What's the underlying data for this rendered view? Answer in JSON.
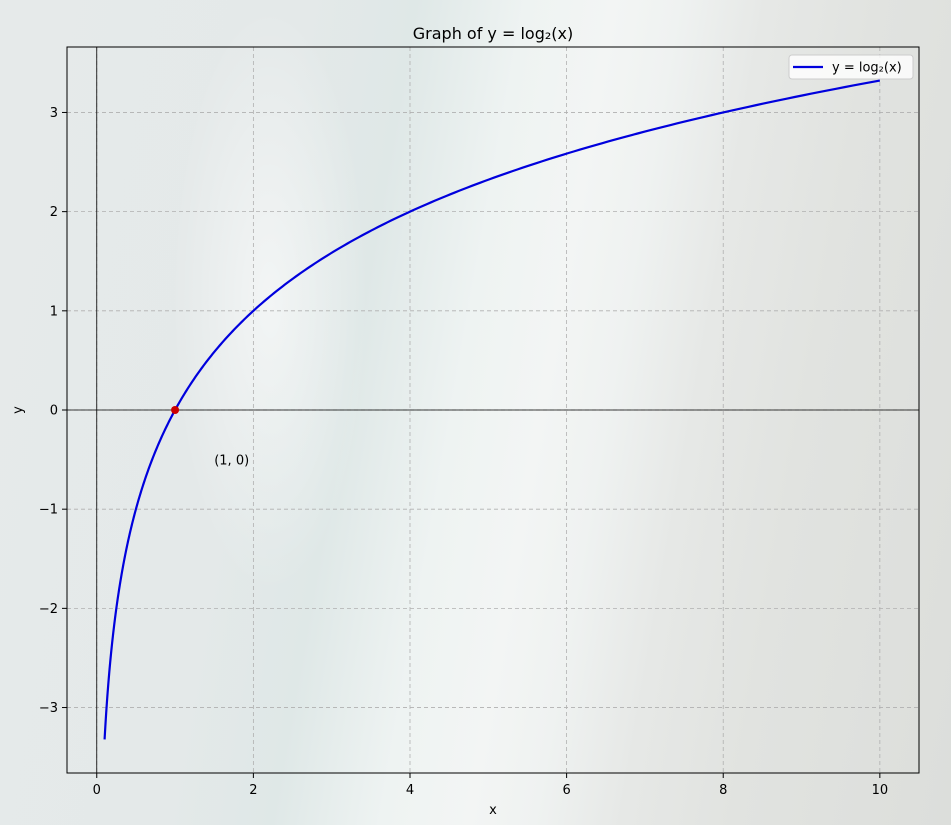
{
  "chart_data": {
    "type": "line",
    "title": "Graph of y = log₂(x)",
    "xlabel": "x",
    "ylabel": "y",
    "xlim": [
      -0.38,
      10.5
    ],
    "ylim": [
      -3.66,
      3.66
    ],
    "xticks": [
      0,
      2,
      4,
      6,
      8,
      10
    ],
    "yticks": [
      -3,
      -2,
      -1,
      0,
      1,
      2,
      3
    ],
    "xtick_labels": [
      "0",
      "2",
      "4",
      "6",
      "8",
      "10"
    ],
    "ytick_labels": [
      "−3",
      "−2",
      "−1",
      "0",
      "1",
      "2",
      "3"
    ],
    "grid": true,
    "legend_position": "top-right",
    "series": [
      {
        "name": "y = log₂(x)",
        "color": "#0000dd",
        "function": "log2",
        "x_range": [
          0.1,
          10
        ]
      }
    ],
    "highlight_point": {
      "x": 1,
      "y": 0,
      "color": "#cc0000"
    },
    "annotation": {
      "text": "(1, 0)",
      "x": 1.5,
      "y": -0.5
    }
  }
}
